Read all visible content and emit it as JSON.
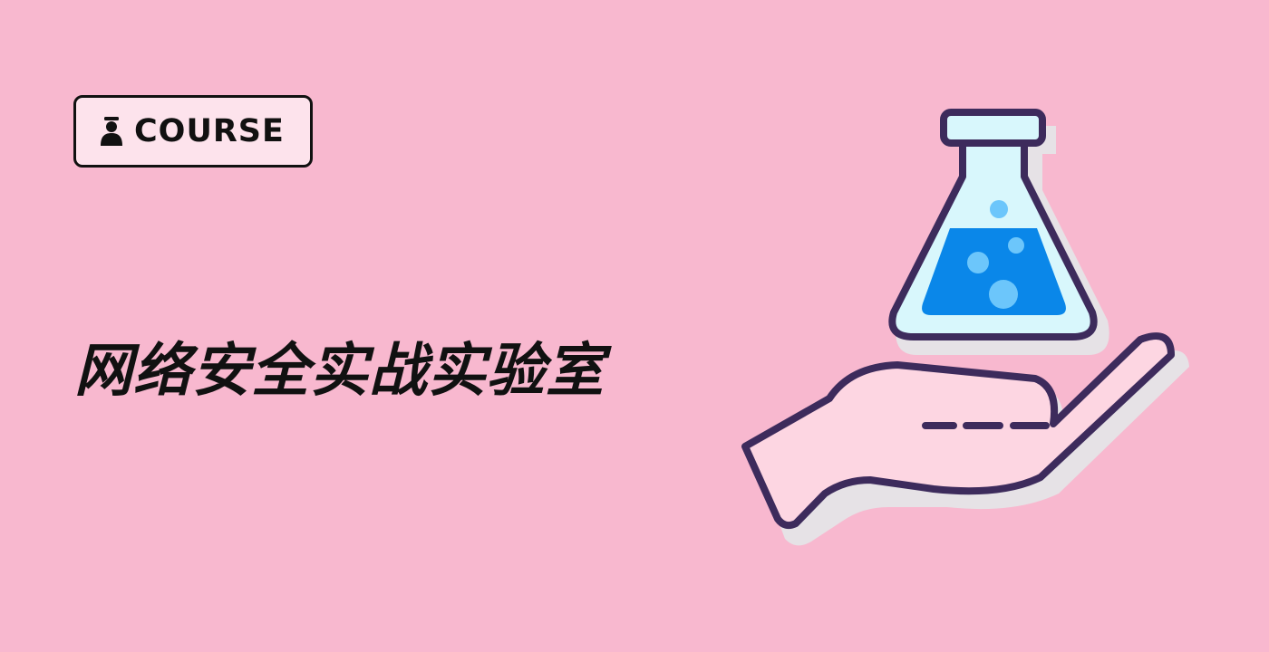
{
  "badge": {
    "label": "COURSE",
    "icon": "course-person-icon"
  },
  "title": "网络安全实战实验室",
  "illustration": {
    "name": "hand-holding-flask",
    "colors": {
      "background": "#f8b8cf",
      "outline": "#3d2b5c",
      "hand_fill": "#fdd6e2",
      "flask_glass": "#d8f7fc",
      "liquid": "#0a87e9",
      "bubbles": "#6cc6fb",
      "shadow": "#e6e2e6"
    }
  }
}
